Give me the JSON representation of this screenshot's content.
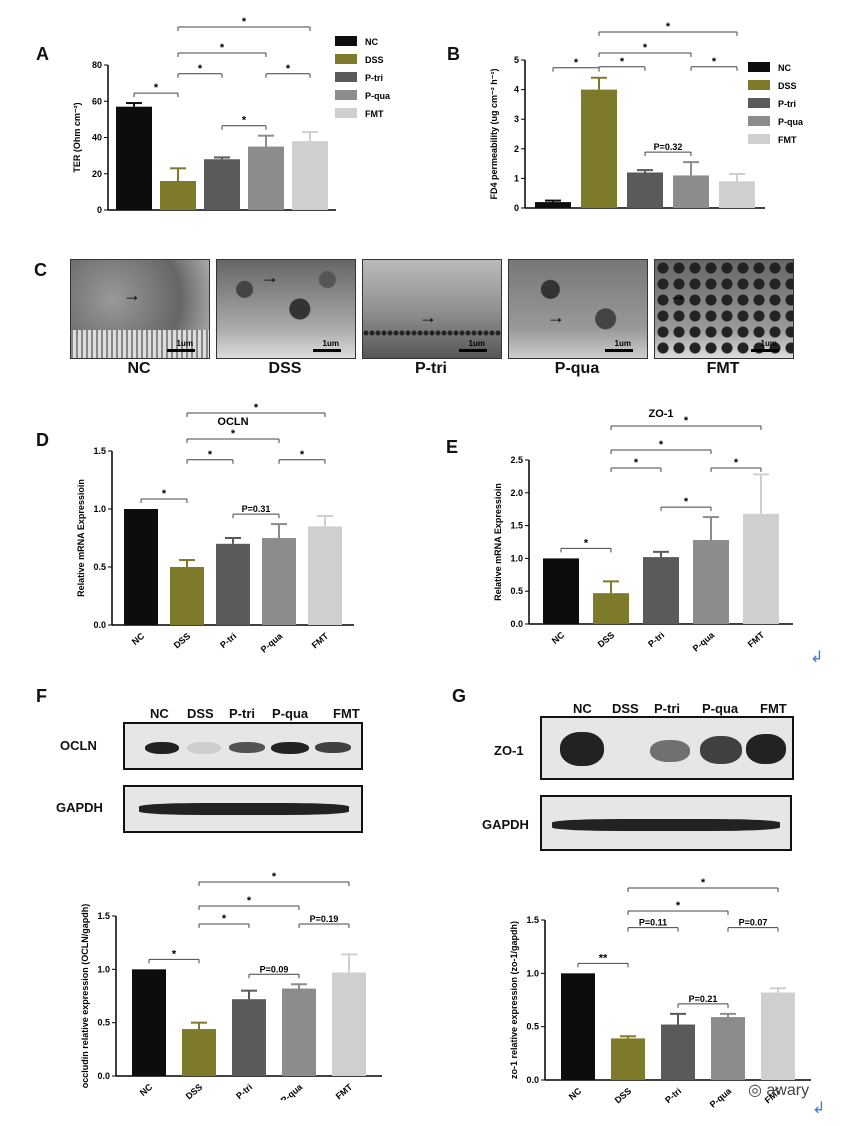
{
  "colors": {
    "NC": "#0d0d0d",
    "DSS": "#7d7a2a",
    "P-tri": "#5a5a5a",
    "P-qua": "#8c8c8c",
    "FMT": "#cfcfcf"
  },
  "panel_labels": {
    "A": "A",
    "B": "B",
    "C": "C",
    "D": "D",
    "E": "E",
    "F": "F",
    "G": "G"
  },
  "micrographs": {
    "labels": [
      "NC",
      "DSS",
      "P-tri",
      "P-qua",
      "FMT"
    ],
    "scale_text": "1um"
  },
  "blot_F": {
    "lanes": [
      "NC",
      "DSS",
      "P-tri",
      "P-qua",
      "FMT"
    ],
    "rows": [
      "OCLN",
      "GAPDH"
    ]
  },
  "blot_G": {
    "lanes": [
      "NC",
      "DSS",
      "P-tri",
      "P-qua",
      "FMT"
    ],
    "rows": [
      "ZO-1",
      "GAPDH"
    ]
  },
  "watermark": "awary",
  "return_glyph": "↲",
  "chart_data": [
    {
      "id": "A",
      "type": "bar",
      "categories": [
        "NC",
        "DSS",
        "P-tri",
        "P-qua",
        "FMT"
      ],
      "values": [
        57,
        16,
        28,
        35,
        38
      ],
      "errors": [
        2,
        7,
        1,
        6,
        5
      ],
      "ylabel": "TER (Ohm cm⁻²)",
      "ylim": [
        0,
        80
      ],
      "yticks": [
        0,
        20,
        40,
        60,
        80
      ],
      "legend": [
        "NC",
        "DSS",
        "P-tri",
        "P-qua",
        "FMT"
      ],
      "legend_position": "right",
      "show_xticks": false,
      "comparisons": [
        {
          "from": 0,
          "to": 1,
          "text": "*",
          "level": 1
        },
        {
          "from": 1,
          "to": 2,
          "text": "*",
          "level": 2
        },
        {
          "from": 1,
          "to": 3,
          "text": "*",
          "level": 3
        },
        {
          "from": 1,
          "to": 4,
          "text": "*",
          "level": 4
        },
        {
          "from": 2,
          "to": 3,
          "text": "*",
          "level": 1
        },
        {
          "from": 3,
          "to": 4,
          "text": "*",
          "level": 2
        }
      ]
    },
    {
      "id": "B",
      "type": "bar",
      "categories": [
        "NC",
        "DSS",
        "P-tri",
        "P-qua",
        "FMT"
      ],
      "values": [
        0.2,
        4.0,
        1.2,
        1.1,
        0.9
      ],
      "errors": [
        0.05,
        0.4,
        0.08,
        0.45,
        0.25
      ],
      "ylabel": "FD4 permeability (ug cm⁻² h⁻¹)",
      "ylim": [
        0,
        5
      ],
      "yticks": [
        0,
        1,
        2,
        3,
        4,
        5
      ],
      "legend": [
        "NC",
        "DSS",
        "P-tri",
        "P-qua",
        "FMT"
      ],
      "legend_position": "right",
      "show_xticks": false,
      "comparisons": [
        {
          "from": 0,
          "to": 1,
          "text": "*",
          "level": 1
        },
        {
          "from": 1,
          "to": 2,
          "text": "*",
          "level": 2
        },
        {
          "from": 1,
          "to": 3,
          "text": "*",
          "level": 3
        },
        {
          "from": 1,
          "to": 4,
          "text": "*",
          "level": 4
        },
        {
          "from": 2,
          "to": 3,
          "text": "P=0.32",
          "level": 1
        },
        {
          "from": 3,
          "to": 4,
          "text": "*",
          "level": 2
        }
      ]
    },
    {
      "id": "D",
      "type": "bar",
      "title": "OCLN",
      "categories": [
        "NC",
        "DSS",
        "P-tri",
        "P-qua",
        "FMT"
      ],
      "values": [
        1.0,
        0.5,
        0.7,
        0.75,
        0.85
      ],
      "errors": [
        0,
        0.06,
        0.05,
        0.12,
        0.09
      ],
      "ylabel": "Relative mRNA Expressioin",
      "ylim": [
        0,
        1.5
      ],
      "yticks": [
        0.0,
        0.5,
        1.0,
        1.5
      ],
      "show_xticks": true,
      "comparisons": [
        {
          "from": 0,
          "to": 1,
          "text": "*",
          "level": 1
        },
        {
          "from": 1,
          "to": 2,
          "text": "*",
          "level": 2
        },
        {
          "from": 1,
          "to": 3,
          "text": "*",
          "level": 3
        },
        {
          "from": 1,
          "to": 4,
          "text": "*",
          "level": 4
        },
        {
          "from": 2,
          "to": 3,
          "text": "P=0.31",
          "level": 1
        },
        {
          "from": 3,
          "to": 4,
          "text": "*",
          "level": 2
        }
      ]
    },
    {
      "id": "E",
      "type": "bar",
      "title": "ZO-1",
      "categories": [
        "NC",
        "DSS",
        "P-tri",
        "P-qua",
        "FMT"
      ],
      "values": [
        1.0,
        0.47,
        1.02,
        1.28,
        1.68
      ],
      "errors": [
        0,
        0.18,
        0.08,
        0.35,
        0.6
      ],
      "ylabel": "Relative mRNA Expressioin",
      "ylim": [
        0,
        2.5
      ],
      "yticks": [
        0.0,
        0.5,
        1.0,
        1.5,
        2.0,
        2.5
      ],
      "show_xticks": true,
      "comparisons": [
        {
          "from": 0,
          "to": 1,
          "text": "*",
          "level": 1
        },
        {
          "from": 1,
          "to": 2,
          "text": "*",
          "level": 2
        },
        {
          "from": 1,
          "to": 3,
          "text": "*",
          "level": 3
        },
        {
          "from": 1,
          "to": 4,
          "text": "*",
          "level": 4
        },
        {
          "from": 2,
          "to": 3,
          "text": "*",
          "level": 1
        },
        {
          "from": 3,
          "to": 4,
          "text": "*",
          "level": 2
        }
      ]
    },
    {
      "id": "F",
      "type": "bar",
      "categories": [
        "NC",
        "DSS",
        "P-tri",
        "P-qua",
        "FMT"
      ],
      "values": [
        1.0,
        0.44,
        0.72,
        0.82,
        0.97
      ],
      "errors": [
        0,
        0.06,
        0.08,
        0.04,
        0.17
      ],
      "ylabel": "occludin relative expression (OCLN/gapdh)",
      "ylim": [
        0,
        1.5
      ],
      "yticks": [
        0.0,
        0.5,
        1.0,
        1.5
      ],
      "show_xticks": true,
      "comparisons": [
        {
          "from": 0,
          "to": 1,
          "text": "*",
          "level": 1
        },
        {
          "from": 1,
          "to": 2,
          "text": "*",
          "level": 2
        },
        {
          "from": 1,
          "to": 3,
          "text": "*",
          "level": 3
        },
        {
          "from": 1,
          "to": 4,
          "text": "*",
          "level": 4
        },
        {
          "from": 2,
          "to": 3,
          "text": "P=0.09",
          "level": 1
        },
        {
          "from": 3,
          "to": 4,
          "text": "P=0.19",
          "level": 2
        }
      ]
    },
    {
      "id": "G",
      "type": "bar",
      "categories": [
        "NC",
        "DSS",
        "P-tri",
        "P-qua",
        "FMT"
      ],
      "values": [
        1.0,
        0.39,
        0.52,
        0.59,
        0.82
      ],
      "errors": [
        0,
        0.02,
        0.1,
        0.03,
        0.04
      ],
      "ylabel": "zo-1 relative expression (zo-1/gapdh)",
      "ylim": [
        0,
        1.5
      ],
      "yticks": [
        0.0,
        0.5,
        1.0,
        1.5
      ],
      "show_xticks": true,
      "comparisons": [
        {
          "from": 0,
          "to": 1,
          "text": "**",
          "level": 1
        },
        {
          "from": 1,
          "to": 2,
          "text": "P=0.11",
          "level": 2
        },
        {
          "from": 1,
          "to": 3,
          "text": "*",
          "level": 3
        },
        {
          "from": 1,
          "to": 4,
          "text": "*",
          "level": 4
        },
        {
          "from": 2,
          "to": 3,
          "text": "P=0.21",
          "level": 1
        },
        {
          "from": 3,
          "to": 4,
          "text": "P=0.07",
          "level": 2
        }
      ]
    }
  ]
}
